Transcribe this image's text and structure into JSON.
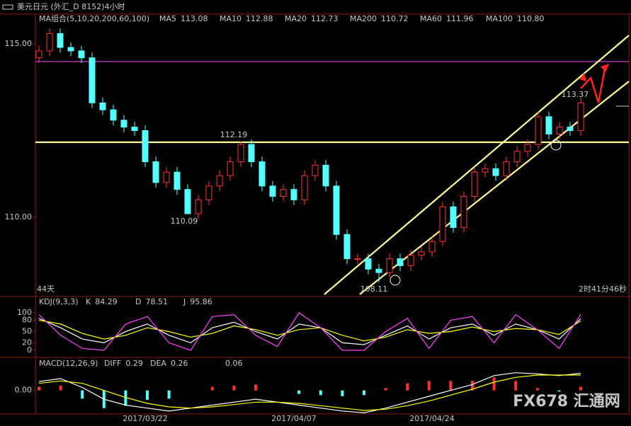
{
  "window_title": "美元日元 (外汇_D 8152)4小时",
  "watermark": "FX678 汇通网",
  "chart_data": [
    {
      "type": "candlestick",
      "legend_title": "MA组合(5,10,20,200,60,100)",
      "legend": [
        {
          "name": "MA5",
          "value": "113.08",
          "color": "#ffffff"
        },
        {
          "name": "MA10",
          "value": "112.88",
          "color": "#ffff00"
        },
        {
          "name": "MA20",
          "value": "112.73",
          "color": "#ff44ff"
        },
        {
          "name": "MA200",
          "value": "110.72",
          "color": "#22cc22"
        },
        {
          "name": "MA60",
          "value": "111.96",
          "color": "#a0a0a0"
        },
        {
          "name": "MA100",
          "value": "110.80",
          "color": "#ff4040"
        }
      ],
      "categories": [
        null,
        null,
        null,
        null,
        null,
        null,
        null,
        null,
        null,
        null,
        "2017/03/22",
        null,
        null,
        null,
        null,
        null,
        null,
        null,
        null,
        null,
        null,
        null,
        null,
        null,
        "2017/04/07",
        null,
        null,
        null,
        null,
        null,
        null,
        null,
        null,
        null,
        null,
        null,
        null,
        "2017/04/24",
        null,
        null,
        null,
        null,
        null,
        null,
        null,
        null,
        null,
        null,
        null,
        null,
        null,
        null
      ],
      "open": [
        114.6,
        114.8,
        115.3,
        114.9,
        114.8,
        114.6,
        113.3,
        113.1,
        112.8,
        112.6,
        112.5,
        111.6,
        111.0,
        111.3,
        110.8,
        110.1,
        110.5,
        110.9,
        111.2,
        111.6,
        112.1,
        111.6,
        110.9,
        110.6,
        110.8,
        110.5,
        111.2,
        111.5,
        110.9,
        109.5,
        108.8,
        108.8,
        108.5,
        108.4,
        108.8,
        108.6,
        108.9,
        109.0,
        109.3,
        110.3,
        109.7,
        110.6,
        111.3,
        111.4,
        111.2,
        111.6,
        111.9,
        112.1,
        112.9,
        112.4,
        112.6,
        112.5
      ],
      "high": [
        114.95,
        115.45,
        115.45,
        115.05,
        114.95,
        114.75,
        113.45,
        113.25,
        112.95,
        112.75,
        112.65,
        111.75,
        111.45,
        111.45,
        110.95,
        110.65,
        111.05,
        111.35,
        111.75,
        112.19,
        112.25,
        111.75,
        111.05,
        110.95,
        110.95,
        111.35,
        111.65,
        111.65,
        111.05,
        109.65,
        108.95,
        108.95,
        108.65,
        108.95,
        108.95,
        109.05,
        109.15,
        109.45,
        110.45,
        110.45,
        110.75,
        111.45,
        111.55,
        111.55,
        111.75,
        112.05,
        112.25,
        113.05,
        113.05,
        112.75,
        112.75,
        113.45
      ],
      "low": [
        114.45,
        114.65,
        114.75,
        114.65,
        114.45,
        113.15,
        112.95,
        112.65,
        112.45,
        112.35,
        111.45,
        110.85,
        110.85,
        110.65,
        110.09,
        109.95,
        110.35,
        110.75,
        111.05,
        111.45,
        111.45,
        110.75,
        110.45,
        110.45,
        110.35,
        110.35,
        111.05,
        110.75,
        109.35,
        108.65,
        108.65,
        108.35,
        108.11,
        108.25,
        108.45,
        108.45,
        108.75,
        108.85,
        109.15,
        109.55,
        109.55,
        110.45,
        111.15,
        111.05,
        111.05,
        111.45,
        111.75,
        111.95,
        112.25,
        112.25,
        112.35,
        112.35
      ],
      "close": [
        114.8,
        115.3,
        114.9,
        114.8,
        114.6,
        113.3,
        113.1,
        112.8,
        112.6,
        112.5,
        111.6,
        111.0,
        111.3,
        110.8,
        110.1,
        110.5,
        110.9,
        111.2,
        111.6,
        112.1,
        111.6,
        110.9,
        110.6,
        110.8,
        110.5,
        111.2,
        111.5,
        110.9,
        109.5,
        108.8,
        108.8,
        108.5,
        108.4,
        108.8,
        108.6,
        108.9,
        109.0,
        109.3,
        110.3,
        109.7,
        110.6,
        111.3,
        111.4,
        111.2,
        111.6,
        111.9,
        112.1,
        112.9,
        112.4,
        112.6,
        112.5,
        113.3
      ],
      "up_color": "#ff3232",
      "down_color": "#54ffff",
      "ylim": [
        107.73,
        115.82
      ],
      "yticks": [
        {
          "value": 115,
          "label": "115.00"
        },
        {
          "value": 110,
          "label": "110.00"
        }
      ],
      "annotations": [
        "112.19",
        "110.09",
        "108.11",
        "113.37"
      ],
      "left_note": "44天",
      "right_note": "2时41分46秒"
    },
    {
      "type": "line",
      "legend_title": "KDJ(9,3,3)",
      "series": [
        {
          "name": "K",
          "value": "84.29",
          "color": "#ffffff",
          "values": [
            85,
            60,
            30,
            20,
            50,
            70,
            40,
            20,
            60,
            75,
            50,
            30,
            70,
            60,
            20,
            15,
            40,
            65,
            30,
            60,
            70,
            40,
            70,
            55,
            30,
            84.29
          ]
        },
        {
          "name": "D",
          "value": "78.51",
          "color": "#ffff00",
          "values": [
            80,
            70,
            45,
            30,
            40,
            60,
            50,
            35,
            45,
            65,
            55,
            40,
            55,
            60,
            40,
            25,
            35,
            55,
            45,
            50,
            62,
            50,
            58,
            55,
            42,
            78.51
          ]
        },
        {
          "name": "J",
          "value": "95.86",
          "color": "#ff44ff",
          "values": [
            95,
            40,
            5,
            0,
            70,
            90,
            20,
            0,
            90,
            95,
            40,
            10,
            100,
            60,
            0,
            0,
            50,
            85,
            5,
            80,
            90,
            20,
            95,
            55,
            5,
            95.86
          ]
        }
      ],
      "ylim": [
        -18.9,
        141.5
      ],
      "yticks": [
        0,
        20,
        50,
        80,
        100
      ]
    },
    {
      "type": "macd",
      "legend_title": "MACD(12,26,9)",
      "series": [
        {
          "name": "DIFF",
          "value": "0.29",
          "color": "#ffffff",
          "values": [
            0.15,
            0.2,
            0.05,
            -0.15,
            -0.25,
            -0.3,
            -0.35,
            -0.3,
            -0.25,
            -0.2,
            -0.15,
            -0.2,
            -0.25,
            -0.3,
            -0.35,
            -0.38,
            -0.3,
            -0.2,
            -0.1,
            0.0,
            0.1,
            0.25,
            0.3,
            0.28,
            0.25,
            0.29
          ]
        },
        {
          "name": "DEA",
          "value": "0.26",
          "color": "#ffff00",
          "values": [
            0.12,
            0.16,
            0.12,
            0.0,
            -0.12,
            -0.22,
            -0.28,
            -0.3,
            -0.28,
            -0.24,
            -0.2,
            -0.2,
            -0.22,
            -0.26,
            -0.3,
            -0.34,
            -0.32,
            -0.26,
            -0.18,
            -0.08,
            0.02,
            0.14,
            0.22,
            0.26,
            0.26,
            0.26
          ]
        }
      ],
      "histogram": {
        "value": "0.06",
        "up_color": "#ff3232",
        "down_color": "#54ffff",
        "values": [
          0.06,
          0.08,
          -0.14,
          -0.3,
          -0.26,
          -0.16,
          -0.14,
          0.0,
          0.06,
          0.08,
          0.1,
          0.0,
          -0.06,
          -0.08,
          -0.1,
          -0.08,
          0.04,
          0.12,
          0.16,
          0.16,
          0.16,
          0.22,
          0.16,
          0.04,
          -0.02,
          0.06
        ]
      },
      "ylim": [
        -0.4,
        0.5
      ],
      "yticks": [
        {
          "value": 0,
          "label": "0.00"
        }
      ]
    }
  ]
}
